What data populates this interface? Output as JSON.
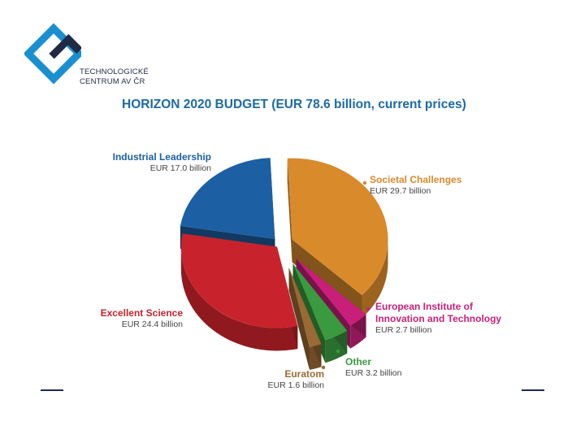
{
  "logo": {
    "line1": "TECHNOLOGICKÉ",
    "line2": "CENTRUM AV ČR",
    "colors": {
      "primary": "#1a8fd0",
      "dark": "#1f2a44"
    }
  },
  "chart_data": {
    "type": "pie",
    "title": "HORIZON 2020 BUDGET (EUR 78.6 billion, current prices)",
    "slices": [
      {
        "label": "Societal Challenges",
        "value_label": "EUR 29.7 billion",
        "value": 29.7,
        "color": "#d98a2b",
        "label_color": "#d98a2b"
      },
      {
        "label": "European Institute of Innovation and Technology",
        "value_label": "EUR 2.7 billion",
        "value": 2.7,
        "color": "#c8207a",
        "label_color": "#c8207a"
      },
      {
        "label": "Other",
        "value_label": "EUR 3.2 billion",
        "value": 3.2,
        "color": "#3a9a3f",
        "label_color": "#3a9a3f"
      },
      {
        "label": "Euratom",
        "value_label": "EUR 1.6 billion",
        "value": 1.6,
        "color": "#9a6a34",
        "label_color": "#9a6a34"
      },
      {
        "label": "Excellent Science",
        "value_label": "EUR 24.4 billion",
        "value": 24.4,
        "color": "#c8232c",
        "label_color": "#c8232c"
      },
      {
        "label": "Industrial Leadership",
        "value_label": "EUR 17.0 billion",
        "value": 17.0,
        "color": "#1d5fa3",
        "label_color": "#1d5fa3"
      }
    ]
  }
}
